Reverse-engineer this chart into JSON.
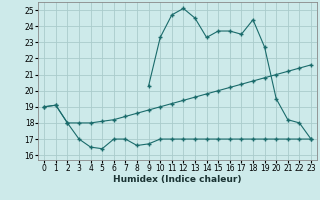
{
  "xlabel": "Humidex (Indice chaleur)",
  "bg_color": "#cdeaea",
  "grid_color": "#aacccc",
  "line_color": "#1a6b6b",
  "xlim": [
    -0.5,
    23.5
  ],
  "ylim": [
    15.7,
    25.5
  ],
  "xtick_labels": [
    "0",
    "1",
    "2",
    "3",
    "4",
    "5",
    "6",
    "7",
    "8",
    "9",
    "10",
    "11",
    "12",
    "13",
    "14",
    "15",
    "16",
    "17",
    "18",
    "19",
    "20",
    "21",
    "22",
    "23"
  ],
  "yticks": [
    16,
    17,
    18,
    19,
    20,
    21,
    22,
    23,
    24,
    25
  ],
  "line_bottom_x": [
    0,
    1,
    2,
    3,
    4,
    5,
    6,
    7,
    8,
    9,
    10,
    11,
    12,
    13,
    14,
    15,
    16,
    17,
    18,
    19,
    20,
    21,
    22,
    23
  ],
  "line_bottom_y": [
    19.0,
    19.1,
    18.0,
    17.0,
    16.5,
    16.4,
    17.0,
    17.0,
    16.6,
    16.7,
    17.0,
    17.0,
    17.0,
    17.0,
    17.0,
    17.0,
    17.0,
    17.0,
    17.0,
    17.0,
    17.0,
    17.0,
    17.0,
    17.0
  ],
  "line_mid_x": [
    0,
    1,
    2,
    3,
    4,
    5,
    6,
    7,
    8,
    9,
    10,
    11,
    12,
    13,
    14,
    15,
    16,
    17,
    18,
    19,
    20,
    21,
    22,
    23
  ],
  "line_mid_y": [
    19.0,
    19.1,
    18.0,
    18.0,
    18.0,
    18.1,
    18.2,
    18.4,
    18.6,
    18.8,
    19.0,
    19.2,
    19.4,
    19.6,
    19.8,
    20.0,
    20.2,
    20.4,
    20.6,
    20.8,
    21.0,
    21.2,
    21.4,
    21.6
  ],
  "line_top_x": [
    9,
    10,
    11,
    12,
    13,
    14,
    15,
    16,
    17,
    18,
    19,
    20,
    21,
    22,
    23
  ],
  "line_top_y": [
    20.3,
    23.3,
    24.7,
    25.1,
    24.5,
    23.3,
    23.7,
    23.7,
    23.5,
    24.4,
    22.7,
    19.5,
    18.2,
    18.0,
    17.0
  ],
  "marker": "+"
}
